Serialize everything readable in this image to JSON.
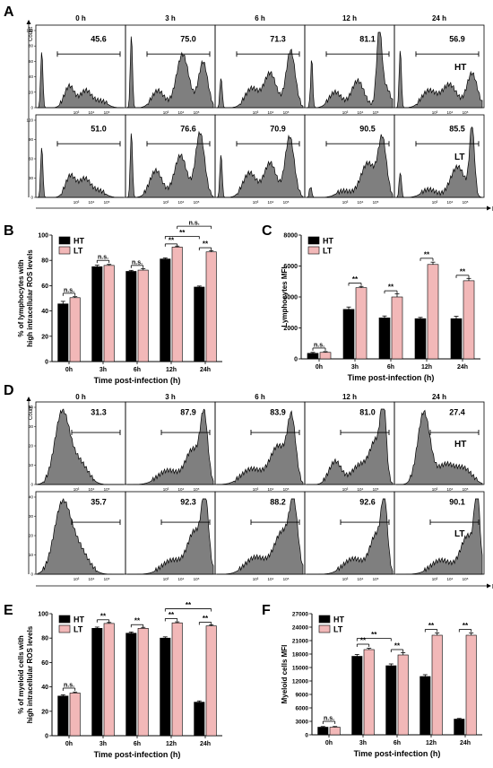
{
  "chart_data": {
    "type": "figure",
    "colors": {
      "HT": "#000000",
      "LT": "#f2b8b8",
      "histogram": "#7f7f7f"
    },
    "panel_A": {
      "label": "A",
      "type": "histogram",
      "column_titles": [
        "0 h",
        "3 h",
        "6 h",
        "12 h",
        "24 h"
      ],
      "row_labels": [
        "HT",
        "LT"
      ],
      "y_title": "Count",
      "x_title": "DCFH-DA",
      "ylim": [
        0,
        120
      ],
      "y_ticks_top": [
        "0",
        "20",
        "40",
        "60",
        "80",
        "100"
      ],
      "y_ticks_bottom": [
        "0",
        "30",
        "60",
        "90",
        "120"
      ],
      "x_tick_labels": [
        "0",
        "10³",
        "10⁴",
        "10⁵"
      ],
      "percent_labels": [
        [
          "45.6",
          "75.0",
          "71.3",
          "81.1",
          "56.9"
        ],
        [
          "51.0",
          "76.6",
          "70.9",
          "90.5",
          "85.5"
        ]
      ]
    },
    "panel_B": {
      "label": "B",
      "type": "bar",
      "ylabel": "% of  lymphocytes with\nhigh intracellular ROS levels",
      "xlabel": "Time post-infection (h)",
      "ylim": [
        0,
        100
      ],
      "y_ticks": [
        "0",
        "20",
        "40",
        "60",
        "80",
        "100"
      ],
      "categories": [
        "0h",
        "3h",
        "6h",
        "12h",
        "24h"
      ],
      "series": [
        {
          "name": "HT",
          "values": [
            45.6,
            75.0,
            71.3,
            81.1,
            58.9
          ],
          "errors": [
            2.0,
            1.2,
            0.8,
            0.8,
            0.8
          ]
        },
        {
          "name": "LT",
          "values": [
            50.5,
            76.0,
            72.3,
            90.5,
            86.7
          ],
          "errors": [
            0.8,
            0.8,
            1.2,
            0.8,
            1.0
          ]
        }
      ],
      "legend": {
        "position": "top-left"
      },
      "significance": [
        {
          "x1": 0,
          "s1": 0,
          "x2": 0,
          "s2": 1,
          "y": 54,
          "text": "n.s."
        },
        {
          "x1": 1,
          "s1": 0,
          "x2": 1,
          "s2": 1,
          "y": 80,
          "text": "n.s."
        },
        {
          "x1": 2,
          "s1": 0,
          "x2": 2,
          "s2": 1,
          "y": 76,
          "text": "n.s."
        },
        {
          "x1": 3,
          "s1": 0,
          "x2": 3,
          "s2": 1,
          "y": 93,
          "text": "**"
        },
        {
          "x1": 4,
          "s1": 0,
          "x2": 4,
          "s2": 1,
          "y": 90,
          "text": "**"
        },
        {
          "x1": 3,
          "s1": 0,
          "x2": 4,
          "s2": 0,
          "y": 99,
          "text": "**"
        },
        {
          "x1": 3,
          "s1": 1,
          "x2": 4,
          "s2": 1,
          "y": 107,
          "text": "n.s."
        }
      ]
    },
    "panel_C": {
      "label": "C",
      "type": "bar",
      "ylabel": "Lymphocytes MFI",
      "xlabel": "Time post-infection (h)",
      "ylim": [
        0,
        8000
      ],
      "y_ticks": [
        "0",
        "2000",
        "4000",
        "6000",
        "8000"
      ],
      "categories": [
        "0h",
        "3h",
        "6h",
        "12h",
        "24h"
      ],
      "series": [
        {
          "name": "HT",
          "values": [
            360,
            3200,
            2650,
            2600,
            2600
          ],
          "errors": [
            60,
            150,
            120,
            80,
            150
          ]
        },
        {
          "name": "LT",
          "values": [
            420,
            4600,
            4000,
            6100,
            5050
          ],
          "errors": [
            50,
            80,
            200,
            150,
            150
          ]
        }
      ],
      "legend": {
        "position": "top-left"
      },
      "significance": [
        {
          "x1": 0,
          "s1": 0,
          "x2": 0,
          "s2": 1,
          "y": 700,
          "text": "n.s."
        },
        {
          "x1": 1,
          "s1": 0,
          "x2": 1,
          "s2": 1,
          "y": 4900,
          "text": "**"
        },
        {
          "x1": 2,
          "s1": 0,
          "x2": 2,
          "s2": 1,
          "y": 4400,
          "text": "**"
        },
        {
          "x1": 3,
          "s1": 0,
          "x2": 3,
          "s2": 1,
          "y": 6500,
          "text": "**"
        },
        {
          "x1": 4,
          "s1": 0,
          "x2": 4,
          "s2": 1,
          "y": 5400,
          "text": "**"
        }
      ]
    },
    "panel_D": {
      "label": "D",
      "type": "histogram",
      "column_titles": [
        "0 h",
        "3 h",
        "6 h",
        "12 h",
        "24 h"
      ],
      "row_labels": [
        "HT",
        "LT"
      ],
      "y_title": "Count",
      "x_title": "DCFH-DA",
      "ylim": [
        0,
        40
      ],
      "y_ticks_top": [
        "0",
        "10",
        "20",
        "30",
        "40"
      ],
      "y_ticks_bottom": [
        "0",
        "10",
        "20",
        "30",
        "40"
      ],
      "x_tick_labels": [
        "0",
        "10³",
        "10⁴",
        "10⁵"
      ],
      "percent_labels": [
        [
          "31.3",
          "87.9",
          "83.9",
          "81.0",
          "27.4"
        ],
        [
          "35.7",
          "92.3",
          "88.2",
          "92.6",
          "90.1"
        ]
      ]
    },
    "panel_E": {
      "label": "E",
      "type": "bar",
      "ylabel": "% of myeloid cells with\nhigh intracellular ROS levels",
      "xlabel": "Time post-infection (h)",
      "ylim": [
        0,
        100
      ],
      "y_ticks": [
        "0",
        "20",
        "40",
        "60",
        "80",
        "100"
      ],
      "categories": [
        "0h",
        "3h",
        "6h",
        "12h",
        "24h"
      ],
      "series": [
        {
          "name": "HT",
          "values": [
            32.5,
            88.0,
            84.0,
            80.0,
            27.5
          ],
          "errors": [
            1.0,
            1.0,
            1.0,
            1.0,
            1.0
          ]
        },
        {
          "name": "LT",
          "values": [
            35.0,
            92.0,
            88.0,
            92.5,
            90.0
          ],
          "errors": [
            0.8,
            0.8,
            0.8,
            0.8,
            0.8
          ]
        }
      ],
      "legend": {
        "position": "top-left"
      },
      "significance": [
        {
          "x1": 0,
          "s1": 0,
          "x2": 0,
          "s2": 1,
          "y": 39,
          "text": "n.s."
        },
        {
          "x1": 1,
          "s1": 0,
          "x2": 1,
          "s2": 1,
          "y": 95,
          "text": "**"
        },
        {
          "x1": 2,
          "s1": 0,
          "x2": 2,
          "s2": 1,
          "y": 91,
          "text": "**"
        },
        {
          "x1": 3,
          "s1": 0,
          "x2": 3,
          "s2": 1,
          "y": 96,
          "text": "**"
        },
        {
          "x1": 4,
          "s1": 0,
          "x2": 4,
          "s2": 1,
          "y": 93,
          "text": "**"
        },
        {
          "x1": 3,
          "s1": 0,
          "x2": 4,
          "s2": 1,
          "y": 104,
          "text": "**"
        }
      ]
    },
    "panel_F": {
      "label": "F",
      "type": "bar",
      "ylabel": "Myeloid cells MFI",
      "xlabel": "Time post-infection (h)",
      "ylim": [
        0,
        27000
      ],
      "y_ticks": [
        "0",
        "3000",
        "6000",
        "9000",
        "12000",
        "15000",
        "18000",
        "21000",
        "24000",
        "27000"
      ],
      "categories": [
        "0h",
        "3h",
        "6h",
        "12h",
        "24h"
      ],
      "series": [
        {
          "name": "HT",
          "values": [
            1700,
            17500,
            15400,
            13000,
            3500
          ],
          "errors": [
            150,
            400,
            400,
            400,
            150
          ]
        },
        {
          "name": "LT",
          "values": [
            1700,
            19000,
            17800,
            22200,
            22200
          ],
          "errors": [
            150,
            300,
            500,
            500,
            500
          ]
        }
      ],
      "legend": {
        "position": "top-left"
      },
      "significance": [
        {
          "x1": 0,
          "s1": 0,
          "x2": 0,
          "s2": 1,
          "y": 3000,
          "text": "n.s."
        },
        {
          "x1": 1,
          "s1": 0,
          "x2": 1,
          "s2": 1,
          "y": 20200,
          "text": "**"
        },
        {
          "x1": 1,
          "s1": 0,
          "x2": 2,
          "s2": 0,
          "y": 21500,
          "text": "**"
        },
        {
          "x1": 2,
          "s1": 0,
          "x2": 2,
          "s2": 1,
          "y": 19000,
          "text": "**"
        },
        {
          "x1": 3,
          "s1": 0,
          "x2": 3,
          "s2": 1,
          "y": 23500,
          "text": "**"
        },
        {
          "x1": 4,
          "s1": 0,
          "x2": 4,
          "s2": 1,
          "y": 23500,
          "text": "**"
        }
      ]
    }
  }
}
